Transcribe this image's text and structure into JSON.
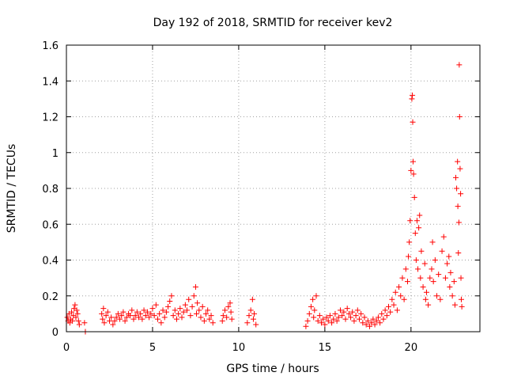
{
  "colors": {
    "series": "#ff0000",
    "axis": "#000000",
    "grid": "#a0a0a0",
    "background": "#ffffff"
  },
  "chart_data": {
    "type": "scatter",
    "title": "Day 192 of 2018, SRMTID for receiver kev2",
    "xlabel": "GPS time / hours",
    "ylabel": "SRMTID / TECUs",
    "xlim": [
      0,
      24
    ],
    "ylim": [
      0,
      1.6
    ],
    "grid": true,
    "marker": "+",
    "x_ticks": [
      0,
      5,
      10,
      15,
      20
    ],
    "x_tick_labels": [
      "0",
      "5",
      "10",
      "15",
      "20"
    ],
    "y_ticks": [
      0,
      0.2,
      0.4,
      0.6,
      0.8,
      1.0,
      1.2,
      1.4,
      1.6
    ],
    "y_tick_labels": [
      "0",
      "0.2",
      "0.4",
      "0.6",
      "0.8",
      "1",
      "1.2",
      "1.4",
      "1.6"
    ],
    "series": [
      {
        "name": "kev2",
        "points": [
          [
            0.05,
            0.08
          ],
          [
            0.1,
            0.06
          ],
          [
            0.15,
            0.1
          ],
          [
            0.2,
            0.05
          ],
          [
            0.25,
            0.07
          ],
          [
            0.3,
            0.11
          ],
          [
            0.35,
            0.06
          ],
          [
            0.4,
            0.09
          ],
          [
            0.45,
            0.13
          ],
          [
            0.5,
            0.15
          ],
          [
            0.55,
            0.08
          ],
          [
            0.6,
            0.12
          ],
          [
            0.65,
            0.1
          ],
          [
            0.7,
            0.06
          ],
          [
            0.75,
            0.04
          ],
          [
            1.05,
            0.05
          ],
          [
            1.1,
            0.0
          ],
          [
            2.05,
            0.1
          ],
          [
            2.1,
            0.07
          ],
          [
            2.15,
            0.13
          ],
          [
            2.2,
            0.05
          ],
          [
            2.3,
            0.09
          ],
          [
            2.4,
            0.11
          ],
          [
            2.5,
            0.06
          ],
          [
            2.6,
            0.08
          ],
          [
            2.7,
            0.04
          ],
          [
            2.8,
            0.06
          ],
          [
            2.9,
            0.08
          ],
          [
            3.0,
            0.1
          ],
          [
            3.1,
            0.07
          ],
          [
            3.2,
            0.09
          ],
          [
            3.3,
            0.11
          ],
          [
            3.4,
            0.06
          ],
          [
            3.5,
            0.08
          ],
          [
            3.6,
            0.1
          ],
          [
            3.7,
            0.09
          ],
          [
            3.8,
            0.12
          ],
          [
            3.9,
            0.07
          ],
          [
            4.0,
            0.09
          ],
          [
            4.1,
            0.11
          ],
          [
            4.2,
            0.08
          ],
          [
            4.3,
            0.1
          ],
          [
            4.4,
            0.07
          ],
          [
            4.5,
            0.12
          ],
          [
            4.6,
            0.09
          ],
          [
            4.7,
            0.11
          ],
          [
            4.8,
            0.08
          ],
          [
            4.9,
            0.1
          ],
          [
            5.0,
            0.13
          ],
          [
            5.1,
            0.09
          ],
          [
            5.2,
            0.15
          ],
          [
            5.3,
            0.07
          ],
          [
            5.4,
            0.1
          ],
          [
            5.5,
            0.05
          ],
          [
            5.6,
            0.12
          ],
          [
            5.7,
            0.08
          ],
          [
            5.8,
            0.11
          ],
          [
            5.9,
            0.14
          ],
          [
            6.0,
            0.17
          ],
          [
            6.1,
            0.2
          ],
          [
            6.2,
            0.09
          ],
          [
            6.3,
            0.12
          ],
          [
            6.4,
            0.07
          ],
          [
            6.5,
            0.1
          ],
          [
            6.6,
            0.13
          ],
          [
            6.7,
            0.08
          ],
          [
            6.8,
            0.11
          ],
          [
            6.9,
            0.15
          ],
          [
            7.0,
            0.12
          ],
          [
            7.1,
            0.18
          ],
          [
            7.2,
            0.09
          ],
          [
            7.3,
            0.14
          ],
          [
            7.4,
            0.2
          ],
          [
            7.5,
            0.25
          ],
          [
            7.55,
            0.1
          ],
          [
            7.6,
            0.16
          ],
          [
            7.7,
            0.12
          ],
          [
            7.8,
            0.08
          ],
          [
            7.9,
            0.14
          ],
          [
            8.0,
            0.06
          ],
          [
            8.1,
            0.1
          ],
          [
            8.2,
            0.12
          ],
          [
            8.3,
            0.07
          ],
          [
            8.4,
            0.09
          ],
          [
            8.5,
            0.05
          ],
          [
            9.05,
            0.06
          ],
          [
            9.1,
            0.09
          ],
          [
            9.2,
            0.12
          ],
          [
            9.3,
            0.08
          ],
          [
            9.4,
            0.14
          ],
          [
            9.5,
            0.16
          ],
          [
            9.55,
            0.11
          ],
          [
            9.6,
            0.07
          ],
          [
            10.5,
            0.05
          ],
          [
            10.6,
            0.09
          ],
          [
            10.7,
            0.12
          ],
          [
            10.8,
            0.18
          ],
          [
            10.85,
            0.07
          ],
          [
            10.9,
            0.1
          ],
          [
            11.0,
            0.04
          ],
          [
            13.9,
            0.03
          ],
          [
            14.0,
            0.06
          ],
          [
            14.1,
            0.1
          ],
          [
            14.2,
            0.14
          ],
          [
            14.3,
            0.18
          ],
          [
            14.35,
            0.08
          ],
          [
            14.4,
            0.12
          ],
          [
            14.5,
            0.2
          ],
          [
            14.6,
            0.06
          ],
          [
            14.7,
            0.09
          ],
          [
            14.8,
            0.05
          ],
          [
            14.9,
            0.07
          ],
          [
            15.0,
            0.04
          ],
          [
            15.1,
            0.08
          ],
          [
            15.2,
            0.06
          ],
          [
            15.3,
            0.09
          ],
          [
            15.4,
            0.05
          ],
          [
            15.5,
            0.07
          ],
          [
            15.6,
            0.1
          ],
          [
            15.7,
            0.06
          ],
          [
            15.8,
            0.08
          ],
          [
            15.9,
            0.12
          ],
          [
            16.0,
            0.09
          ],
          [
            16.1,
            0.11
          ],
          [
            16.2,
            0.07
          ],
          [
            16.3,
            0.13
          ],
          [
            16.4,
            0.1
          ],
          [
            16.5,
            0.08
          ],
          [
            16.6,
            0.11
          ],
          [
            16.7,
            0.06
          ],
          [
            16.8,
            0.09
          ],
          [
            16.9,
            0.12
          ],
          [
            17.0,
            0.07
          ],
          [
            17.1,
            0.1
          ],
          [
            17.2,
            0.05
          ],
          [
            17.3,
            0.08
          ],
          [
            17.4,
            0.04
          ],
          [
            17.5,
            0.06
          ],
          [
            17.6,
            0.03
          ],
          [
            17.7,
            0.05
          ],
          [
            17.8,
            0.07
          ],
          [
            17.9,
            0.04
          ],
          [
            18.0,
            0.06
          ],
          [
            18.1,
            0.08
          ],
          [
            18.2,
            0.05
          ],
          [
            18.3,
            0.1
          ],
          [
            18.4,
            0.07
          ],
          [
            18.5,
            0.12
          ],
          [
            18.6,
            0.09
          ],
          [
            18.7,
            0.14
          ],
          [
            18.8,
            0.11
          ],
          [
            18.9,
            0.18
          ],
          [
            19.0,
            0.15
          ],
          [
            19.1,
            0.22
          ],
          [
            19.2,
            0.12
          ],
          [
            19.3,
            0.25
          ],
          [
            19.4,
            0.2
          ],
          [
            19.5,
            0.3
          ],
          [
            19.6,
            0.18
          ],
          [
            19.7,
            0.35
          ],
          [
            19.8,
            0.28
          ],
          [
            19.85,
            0.42
          ],
          [
            19.9,
            0.5
          ],
          [
            19.95,
            0.62
          ],
          [
            20.0,
            0.9
          ],
          [
            20.05,
            1.3
          ],
          [
            20.08,
            1.32
          ],
          [
            20.1,
            1.17
          ],
          [
            20.12,
            0.95
          ],
          [
            20.15,
            0.88
          ],
          [
            20.2,
            0.75
          ],
          [
            20.25,
            0.55
          ],
          [
            20.3,
            0.4
          ],
          [
            20.35,
            0.62
          ],
          [
            20.4,
            0.35
          ],
          [
            20.45,
            0.58
          ],
          [
            20.5,
            0.65
          ],
          [
            20.55,
            0.3
          ],
          [
            20.6,
            0.45
          ],
          [
            20.7,
            0.25
          ],
          [
            20.8,
            0.38
          ],
          [
            20.85,
            0.18
          ],
          [
            20.9,
            0.22
          ],
          [
            21.0,
            0.15
          ],
          [
            21.1,
            0.3
          ],
          [
            21.2,
            0.35
          ],
          [
            21.25,
            0.5
          ],
          [
            21.3,
            0.28
          ],
          [
            21.4,
            0.4
          ],
          [
            21.5,
            0.2
          ],
          [
            21.6,
            0.32
          ],
          [
            21.7,
            0.18
          ],
          [
            21.8,
            0.45
          ],
          [
            21.9,
            0.53
          ],
          [
            22.0,
            0.3
          ],
          [
            22.1,
            0.38
          ],
          [
            22.2,
            0.42
          ],
          [
            22.25,
            0.25
          ],
          [
            22.3,
            0.33
          ],
          [
            22.4,
            0.2
          ],
          [
            22.5,
            0.28
          ],
          [
            22.55,
            0.15
          ],
          [
            22.6,
            0.86
          ],
          [
            22.65,
            0.8
          ],
          [
            22.7,
            0.95
          ],
          [
            22.72,
            0.7
          ],
          [
            22.75,
            0.44
          ],
          [
            22.78,
            0.61
          ],
          [
            22.8,
            1.49
          ],
          [
            22.82,
            1.2
          ],
          [
            22.85,
            0.91
          ],
          [
            22.88,
            0.77
          ],
          [
            22.9,
            0.3
          ],
          [
            22.92,
            0.18
          ],
          [
            22.95,
            0.14
          ]
        ]
      }
    ]
  }
}
